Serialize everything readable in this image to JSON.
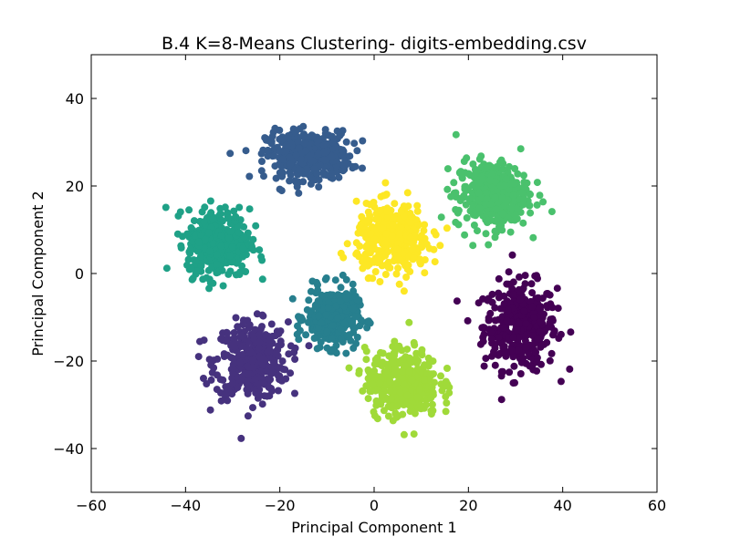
{
  "chart_data": {
    "type": "scatter",
    "title": "B.4 K=8-Means Clustering- digits-embedding.csv",
    "xlabel": "Principal Component 1",
    "ylabel": "Principal Component 2",
    "xlim": [
      -60,
      60
    ],
    "ylim": [
      -50,
      50
    ],
    "xticks": [
      -60,
      -40,
      -20,
      0,
      20,
      40,
      60
    ],
    "yticks": [
      -40,
      -20,
      0,
      20,
      40
    ],
    "xtick_labels": [
      "−60",
      "−40",
      "−20",
      "0",
      "20",
      "40",
      "60"
    ],
    "ytick_labels": [
      "−40",
      "−20",
      "0",
      "20",
      "40"
    ],
    "grid": false,
    "legend": "none",
    "clusters": [
      {
        "id": 0,
        "color": "#440154",
        "center": [
          31,
          -12
        ],
        "spread": [
          7,
          9
        ]
      },
      {
        "id": 1,
        "color": "#46327e",
        "center": [
          -26,
          -20
        ],
        "spread": [
          7,
          8
        ]
      },
      {
        "id": 2,
        "color": "#365c8d",
        "center": [
          -14,
          27
        ],
        "spread": [
          8,
          5
        ]
      },
      {
        "id": 3,
        "color": "#277f8e",
        "center": [
          -9,
          -10
        ],
        "spread": [
          5,
          6
        ]
      },
      {
        "id": 4,
        "color": "#1fa187",
        "center": [
          -33,
          7
        ],
        "spread": [
          6,
          7
        ]
      },
      {
        "id": 5,
        "color": "#4ac16d",
        "center": [
          25,
          18
        ],
        "spread": [
          7,
          7
        ]
      },
      {
        "id": 6,
        "color": "#a0da39",
        "center": [
          6,
          -25
        ],
        "spread": [
          7,
          7
        ]
      },
      {
        "id": 7,
        "color": "#fde725",
        "center": [
          4,
          8
        ],
        "spread": [
          7,
          7
        ]
      }
    ]
  }
}
